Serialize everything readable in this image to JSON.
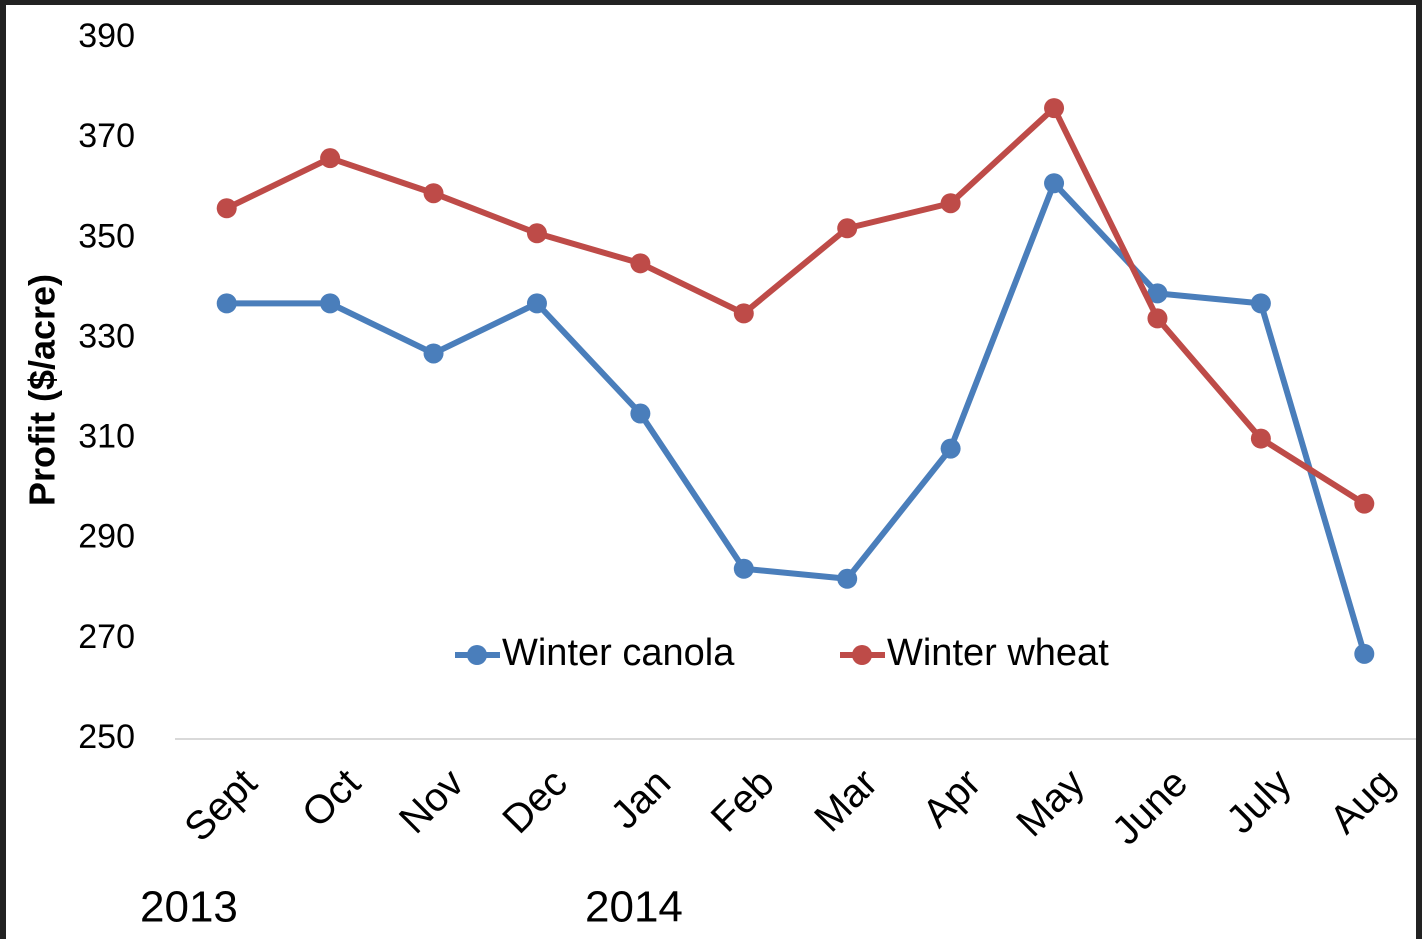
{
  "chart_data": {
    "type": "line",
    "y_label": "Profit ($/acre)",
    "categories": [
      "Sept",
      "Oct",
      "Nov",
      "Dec",
      "Jan",
      "Feb",
      "Mar",
      "Apr",
      "May",
      "June",
      "July",
      "Aug"
    ],
    "series": [
      {
        "name": "Winter canola",
        "color": "#4a7ebb",
        "values": [
          337,
          337,
          327,
          337,
          315,
          284,
          282,
          308,
          361,
          339,
          337,
          267
        ]
      },
      {
        "name": "Winter wheat",
        "color": "#be4b48",
        "values": [
          356,
          366,
          359,
          351,
          345,
          335,
          352,
          357,
          376,
          334,
          310,
          297
        ]
      }
    ],
    "annotations": [
      "2013",
      "2014"
    ],
    "ylim": [
      250,
      390
    ],
    "yticks": [
      250,
      270,
      290,
      310,
      330,
      350,
      370,
      390
    ],
    "grid": false,
    "legend_position": "bottom"
  }
}
